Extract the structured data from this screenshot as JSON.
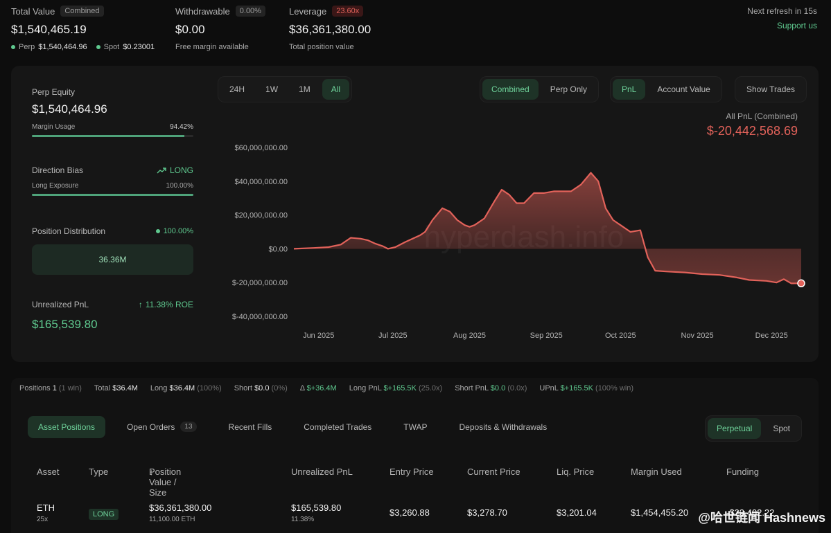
{
  "header": {
    "total_value": {
      "label": "Total Value",
      "badge": "Combined",
      "value": "$1,540,465.19",
      "perp_label": "Perp",
      "perp_value": "$1,540,464.96",
      "spot_label": "Spot",
      "spot_value": "$0.23001"
    },
    "withdrawable": {
      "label": "Withdrawable",
      "badge": "0.00%",
      "value": "$0.00",
      "sub": "Free margin available"
    },
    "leverage": {
      "label": "Leverage",
      "badge": "23.60x",
      "value": "$36,361,380.00",
      "sub": "Total position value"
    },
    "refresh": "Next refresh in 15s",
    "support": "Support us"
  },
  "left_panel": {
    "perp_equity_label": "Perp Equity",
    "perp_equity_value": "$1,540,464.96",
    "margin_usage_label": "Margin Usage",
    "margin_usage_value": "94.42%",
    "margin_usage_fraction": 0.9442,
    "direction_bias_label": "Direction Bias",
    "direction_bias_value": "LONG",
    "long_exposure_label": "Long Exposure",
    "long_exposure_value": "100.00%",
    "long_exposure_fraction": 1.0,
    "position_distribution_label": "Position Distribution",
    "position_distribution_value": "100.00%",
    "distribution_box": "36.36M",
    "unrealized_pnl_label": "Unrealized PnL",
    "roe": "11.38% ROE",
    "unrealized_pnl_value": "$165,539.80"
  },
  "chart_controls": {
    "ranges": [
      "24H",
      "1W",
      "1M",
      "All"
    ],
    "range_active": "All",
    "modes": [
      "Combined",
      "Perp Only"
    ],
    "mode_active": "Combined",
    "metrics": [
      "PnL",
      "Account Value"
    ],
    "metric_active": "PnL",
    "show_trades": "Show Trades"
  },
  "chart_data": {
    "type": "area",
    "title": "All PnL (Combined)",
    "headline_value": "$-20,442,568.69",
    "watermark": "hyperdash.info",
    "y_ticks": [
      "$60,000,000.00",
      "$40,000,000.00",
      "$20,000,000.00",
      "$0.00",
      "$-20,000,000.00",
      "$-40,000,000.00"
    ],
    "y_tick_values": [
      60000000,
      40000000,
      20000000,
      0,
      -20000000,
      -40000000
    ],
    "ylim": [
      -40000000,
      60000000
    ],
    "x_ticks": [
      "Jun 2025",
      "Jul 2025",
      "Aug 2025",
      "Sep 2025",
      "Oct 2025",
      "Nov 2025",
      "Dec 2025"
    ],
    "x_tick_values": [
      "2025-06-01",
      "2025-07-01",
      "2025-08-01",
      "2025-09-01",
      "2025-10-01",
      "2025-11-01",
      "2025-12-01"
    ],
    "x_range": [
      "2025-05-22",
      "2025-12-13"
    ],
    "points": [
      [
        "2025-05-22",
        0
      ],
      [
        "2025-05-30",
        500000
      ],
      [
        "2025-06-05",
        1000000
      ],
      [
        "2025-06-10",
        2500000
      ],
      [
        "2025-06-14",
        6500000
      ],
      [
        "2025-06-18",
        6000000
      ],
      [
        "2025-06-21",
        5000000
      ],
      [
        "2025-06-24",
        3000000
      ],
      [
        "2025-06-27",
        1500000
      ],
      [
        "2025-06-29",
        0
      ],
      [
        "2025-07-02",
        1000000
      ],
      [
        "2025-07-06",
        4000000
      ],
      [
        "2025-07-09",
        6000000
      ],
      [
        "2025-07-12",
        8000000
      ],
      [
        "2025-07-14",
        10000000
      ],
      [
        "2025-07-17",
        17000000
      ],
      [
        "2025-07-21",
        24000000
      ],
      [
        "2025-07-24",
        22000000
      ],
      [
        "2025-07-27",
        17000000
      ],
      [
        "2025-07-30",
        14000000
      ],
      [
        "2025-08-01",
        13000000
      ],
      [
        "2025-08-03",
        14000000
      ],
      [
        "2025-08-07",
        18000000
      ],
      [
        "2025-08-11",
        28000000
      ],
      [
        "2025-08-14",
        35000000
      ],
      [
        "2025-08-17",
        32000000
      ],
      [
        "2025-08-20",
        27000000
      ],
      [
        "2025-08-23",
        27000000
      ],
      [
        "2025-08-27",
        33000000
      ],
      [
        "2025-08-31",
        33000000
      ],
      [
        "2025-09-04",
        34000000
      ],
      [
        "2025-09-11",
        34000000
      ],
      [
        "2025-09-15",
        38000000
      ],
      [
        "2025-09-19",
        45000000
      ],
      [
        "2025-09-22",
        40000000
      ],
      [
        "2025-09-25",
        24000000
      ],
      [
        "2025-09-28",
        17000000
      ],
      [
        "2025-10-01",
        14000000
      ],
      [
        "2025-10-05",
        10000000
      ],
      [
        "2025-10-09",
        11000000
      ],
      [
        "2025-10-12",
        -5000000
      ],
      [
        "2025-10-15",
        -13000000
      ],
      [
        "2025-10-20",
        -13500000
      ],
      [
        "2025-10-27",
        -14000000
      ],
      [
        "2025-11-03",
        -15000000
      ],
      [
        "2025-11-10",
        -15500000
      ],
      [
        "2025-11-17",
        -17000000
      ],
      [
        "2025-11-22",
        -18500000
      ],
      [
        "2025-11-29",
        -19000000
      ],
      [
        "2025-12-03",
        -20000000
      ],
      [
        "2025-12-06",
        -18000000
      ],
      [
        "2025-12-09",
        -20500000
      ],
      [
        "2025-12-13",
        -20442568.69
      ]
    ],
    "line_color": "#e2625a",
    "grid": false
  },
  "summary_strip": {
    "positions_label": "Positions",
    "positions_value": "1",
    "positions_note": "(1 win)",
    "total_label": "Total",
    "total_value": "$36.4M",
    "long_label": "Long",
    "long_value": "$36.4M",
    "long_note": "(100%)",
    "short_label": "Short",
    "short_value": "$0.0",
    "short_note": "(0%)",
    "delta_label": "Δ",
    "delta_value": "$+36.4M",
    "long_pnl_label": "Long PnL",
    "long_pnl_value": "$+165.5K",
    "long_pnl_note": "(25.0x)",
    "short_pnl_label": "Short PnL",
    "short_pnl_value": "$0.0",
    "short_pnl_note": "(0.0x)",
    "upnl_label": "UPnL",
    "upnl_value": "$+165.5K",
    "upnl_note": "(100% win)"
  },
  "tabs": {
    "items": [
      "Asset Positions",
      "Open Orders",
      "Recent Fills",
      "Completed Trades",
      "TWAP",
      "Deposits & Withdrawals"
    ],
    "active": "Asset Positions",
    "open_orders_count": "13",
    "market_toggle": [
      "Perpetual",
      "Spot"
    ],
    "market_active": "Perpetual"
  },
  "table": {
    "columns": [
      "Asset",
      "Type",
      "Position Value / Size",
      "Unrealized PnL",
      "Entry Price",
      "Current Price",
      "Liq. Price",
      "Margin Used",
      "Funding"
    ],
    "sort_arrow": "↓",
    "rows": [
      {
        "asset": "ETH",
        "leverage": "25x",
        "type": "LONG",
        "position_value": "$36,361,380.00",
        "size": "11,100.00 ETH",
        "upnl": "$165,539.80",
        "upnl_pct": "11.38%",
        "entry": "$3,260.88",
        "current": "$3,278.70",
        "liq": "$3,201.04",
        "margin_used": "$1,454,455.20",
        "funding": "-$23,402.22"
      }
    ]
  },
  "watermark_text": "@哈世链闻 Hashnews"
}
